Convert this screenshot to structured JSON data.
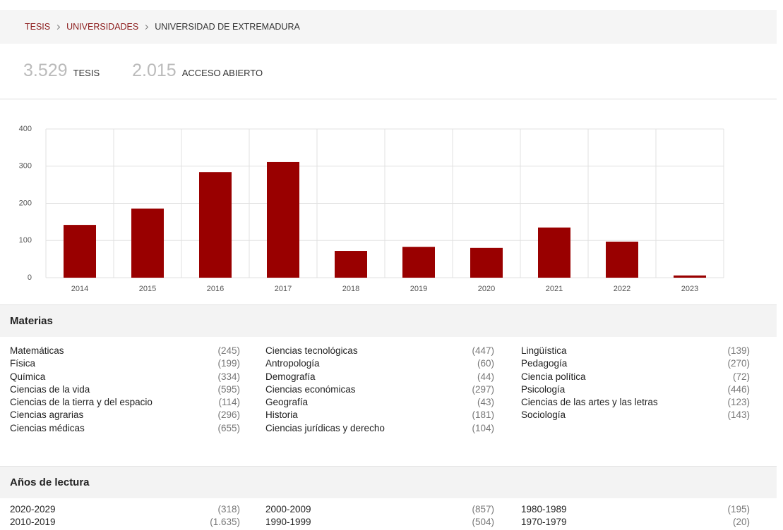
{
  "breadcrumb": [
    "TESIS",
    "UNIVERSIDADES",
    "UNIVERSIDAD DE EXTREMADURA"
  ],
  "stats": [
    {
      "value": "3.529",
      "label": "TESIS"
    },
    {
      "value": "2.015",
      "label": "ACCESO ABIERTO"
    }
  ],
  "chart_data": {
    "type": "bar",
    "categories": [
      "2014",
      "2015",
      "2016",
      "2017",
      "2018",
      "2019",
      "2020",
      "2021",
      "2022",
      "2023"
    ],
    "values": [
      142,
      186,
      284,
      311,
      72,
      83,
      80,
      135,
      97,
      6
    ],
    "color": "#990000",
    "ylim": [
      0,
      400
    ],
    "yticks": [
      0,
      100,
      200,
      300,
      400
    ],
    "grid": true
  },
  "materias": {
    "title": "Materias",
    "columns": [
      [
        {
          "name": "Matemáticas",
          "count": "(245)"
        },
        {
          "name": "Física",
          "count": "(199)"
        },
        {
          "name": "Química",
          "count": "(334)"
        },
        {
          "name": "Ciencias de la vida",
          "count": "(595)"
        },
        {
          "name": "Ciencias de la tierra y del espacio",
          "count": "(114)"
        },
        {
          "name": "Ciencias agrarias",
          "count": "(296)"
        },
        {
          "name": "Ciencias médicas",
          "count": "(655)"
        }
      ],
      [
        {
          "name": "Ciencias tecnológicas",
          "count": "(447)"
        },
        {
          "name": "Antropología",
          "count": "(60)"
        },
        {
          "name": "Demografía",
          "count": "(44)"
        },
        {
          "name": "Ciencias económicas",
          "count": "(297)"
        },
        {
          "name": "Geografía",
          "count": "(43)"
        },
        {
          "name": "Historia",
          "count": "(181)"
        },
        {
          "name": "Ciencias jurídicas y derecho",
          "count": "(104)"
        }
      ],
      [
        {
          "name": "Lingüística",
          "count": "(139)"
        },
        {
          "name": "Pedagogía",
          "count": "(270)"
        },
        {
          "name": "Ciencia política",
          "count": "(72)"
        },
        {
          "name": "Psicología",
          "count": "(446)"
        },
        {
          "name": "Ciencias de las artes y las letras",
          "count": "(123)"
        },
        {
          "name": "Sociología",
          "count": "(143)"
        }
      ]
    ]
  },
  "anos": {
    "title": "Años de lectura",
    "columns": [
      [
        {
          "name": "2020-2029",
          "count": "(318)"
        },
        {
          "name": "2010-2019",
          "count": "(1.635)"
        }
      ],
      [
        {
          "name": "2000-2009",
          "count": "(857)"
        },
        {
          "name": "1990-1999",
          "count": "(504)"
        }
      ],
      [
        {
          "name": "1980-1989",
          "count": "(195)"
        },
        {
          "name": "1970-1979",
          "count": "(20)"
        }
      ]
    ]
  }
}
